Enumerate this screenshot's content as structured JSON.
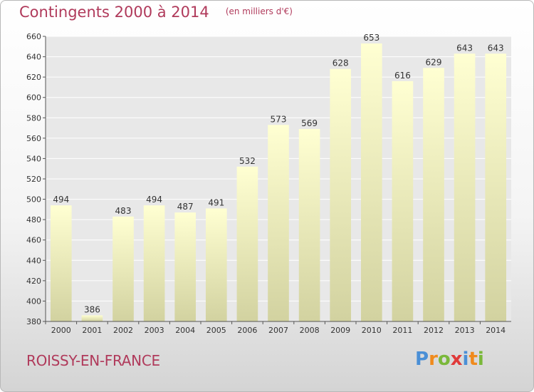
{
  "chart_data": {
    "type": "bar",
    "title": "Contingents 2000 à 2014",
    "unit_label": "(en milliers d'€)",
    "categories": [
      "2000",
      "2001",
      "2002",
      "2003",
      "2004",
      "2005",
      "2006",
      "2007",
      "2008",
      "2009",
      "2010",
      "2011",
      "2012",
      "2013",
      "2014"
    ],
    "values": [
      494,
      386,
      483,
      494,
      487,
      491,
      532,
      573,
      569,
      628,
      653,
      616,
      629,
      643,
      643
    ],
    "data_labels": [
      "494",
      "386",
      "483",
      "494",
      "487",
      "491",
      "532",
      "573",
      "569",
      "628",
      "653",
      "616",
      "629",
      "643",
      "643"
    ],
    "ylim": [
      380,
      660
    ],
    "yticks": [
      "380",
      "400",
      "420",
      "440",
      "460",
      "480",
      "500",
      "520",
      "540",
      "560",
      "580",
      "600",
      "620",
      "640",
      "660"
    ],
    "grid": true,
    "legend": "none",
    "colors": {
      "bar_top": "#ffffd2",
      "bar_bottom": "#d2d2a0",
      "title": "#b03a5b",
      "grid": "#ffffff"
    }
  },
  "footer": {
    "place": "ROISSY-EN-FRANCE",
    "logo_letters": [
      "P",
      "r",
      "o",
      "x",
      "i",
      "t",
      "i"
    ],
    "logo_colors": [
      "#4a8fd6",
      "#f08a1c",
      "#7ab83a",
      "#e03a3a",
      "#4a8fd6",
      "#f08a1c",
      "#7ab83a"
    ]
  }
}
